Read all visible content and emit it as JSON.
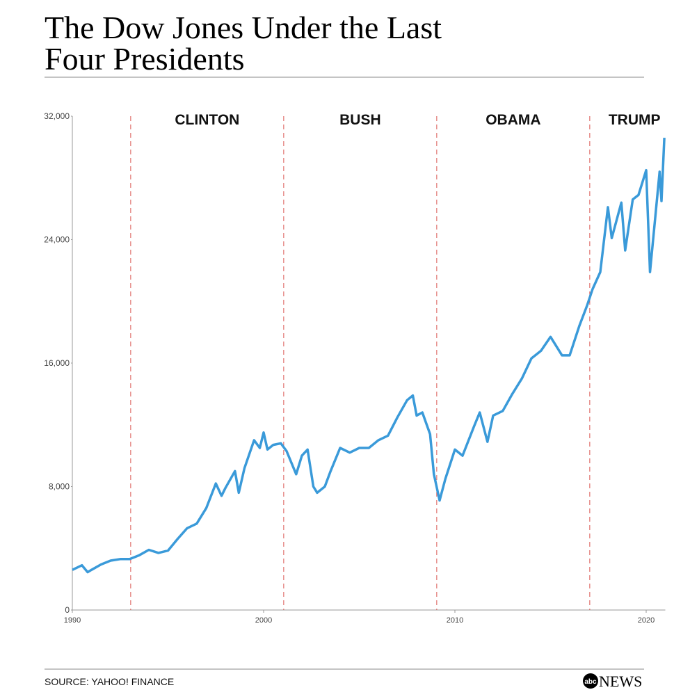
{
  "chart_data": {
    "type": "line",
    "title_lines": [
      "The Dow Jones Under the Last",
      "Four Presidents"
    ],
    "source": "SOURCE: YAHOO! FINANCE",
    "logo": {
      "mark": "abc",
      "text": "NEWS"
    },
    "xlim": [
      1990,
      2021
    ],
    "xticks": [
      1990,
      2000,
      2010,
      2020
    ],
    "ylim": [
      0,
      32000
    ],
    "yticks": [
      0,
      {
        "value": 8000,
        "label": "8,000"
      },
      {
        "value": 16000,
        "label": "16,000"
      },
      {
        "value": 24000,
        "label": "24,000"
      },
      {
        "value": 32000,
        "label": "32,000"
      }
    ],
    "presidents": [
      {
        "name": "CLINTON",
        "start": 1993.05
      },
      {
        "name": "BUSH",
        "start": 2001.05
      },
      {
        "name": "OBAMA",
        "start": 2009.05
      },
      {
        "name": "TRUMP",
        "start": 2017.05
      }
    ],
    "series": [
      {
        "name": "Dow Jones",
        "color": "#3a9ad9",
        "x": [
          1990.0,
          1990.5,
          1990.8,
          1991.0,
          1991.5,
          1992.0,
          1992.5,
          1993.0,
          1993.5,
          1994.0,
          1994.5,
          1995.0,
          1995.5,
          1996.0,
          1996.5,
          1997.0,
          1997.5,
          1997.8,
          1998.0,
          1998.5,
          1998.7,
          1999.0,
          1999.5,
          1999.8,
          2000.0,
          2000.2,
          2000.5,
          2000.9,
          2001.2,
          2001.7,
          2002.0,
          2002.3,
          2002.6,
          2002.8,
          2003.2,
          2003.5,
          2004.0,
          2004.5,
          2005.0,
          2005.5,
          2006.0,
          2006.5,
          2007.0,
          2007.5,
          2007.8,
          2008.0,
          2008.3,
          2008.7,
          2008.9,
          2009.2,
          2009.5,
          2010.0,
          2010.4,
          2011.0,
          2011.3,
          2011.7,
          2012.0,
          2012.5,
          2013.0,
          2013.5,
          2014.0,
          2014.5,
          2015.0,
          2015.6,
          2016.0,
          2016.5,
          2016.9,
          2017.2,
          2017.6,
          2018.0,
          2018.2,
          2018.7,
          2018.9,
          2019.3,
          2019.6,
          2020.0,
          2020.2,
          2020.5,
          2020.7,
          2020.8,
          2020.95
        ],
        "values": [
          2600,
          2900,
          2450,
          2600,
          2950,
          3200,
          3300,
          3300,
          3550,
          3900,
          3700,
          3850,
          4600,
          5300,
          5600,
          6600,
          8200,
          7400,
          7900,
          9000,
          7600,
          9200,
          11000,
          10500,
          11500,
          10400,
          10700,
          10800,
          10300,
          8800,
          10000,
          10400,
          8000,
          7600,
          8000,
          9000,
          10500,
          10200,
          10500,
          10500,
          11000,
          11300,
          12500,
          13600,
          13900,
          12600,
          12800,
          11400,
          8800,
          7100,
          8500,
          10400,
          10000,
          11900,
          12800,
          10900,
          12600,
          12900,
          14000,
          15000,
          16300,
          16800,
          17700,
          16500,
          16500,
          18400,
          19700,
          20800,
          21900,
          26100,
          24100,
          26400,
          23300,
          26600,
          26900,
          28500,
          21900,
          25800,
          28400,
          26500,
          30600
        ]
      }
    ]
  }
}
